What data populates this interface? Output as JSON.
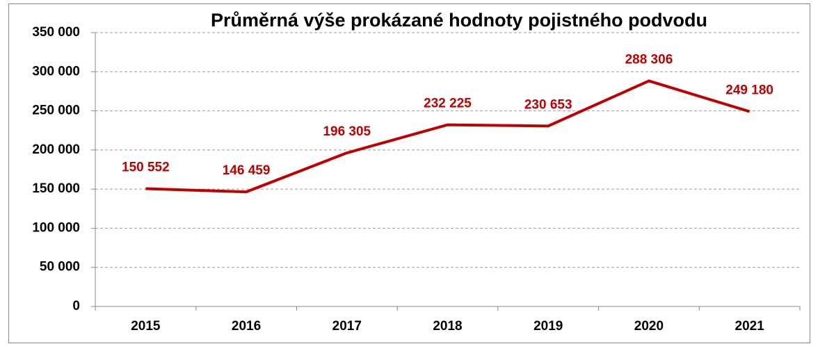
{
  "chart_data": {
    "type": "line",
    "title": "Průměrná výše prokázané hodnoty pojistného podvodu",
    "categories": [
      "2015",
      "2016",
      "2017",
      "2018",
      "2019",
      "2020",
      "2021"
    ],
    "values": [
      150552,
      146459,
      196305,
      232225,
      230653,
      288306,
      249180
    ],
    "value_labels": [
      "150 552",
      "146 459",
      "196 305",
      "232 225",
      "230 653",
      "288 306",
      "249 180"
    ],
    "color": "#c00000",
    "ylim": [
      0,
      350000
    ],
    "yticks": [
      0,
      {
        "value": 50000,
        "label": "50 000"
      },
      {
        "value": 100000,
        "label": "100 000"
      },
      {
        "value": 150000,
        "label": "150 000"
      },
      {
        "value": 200000,
        "label": "200 000"
      },
      {
        "value": 250000,
        "label": "250 000"
      },
      {
        "value": 300000,
        "label": "300 000"
      },
      {
        "value": 350000,
        "label": "350 000"
      }
    ],
    "grid": true
  }
}
